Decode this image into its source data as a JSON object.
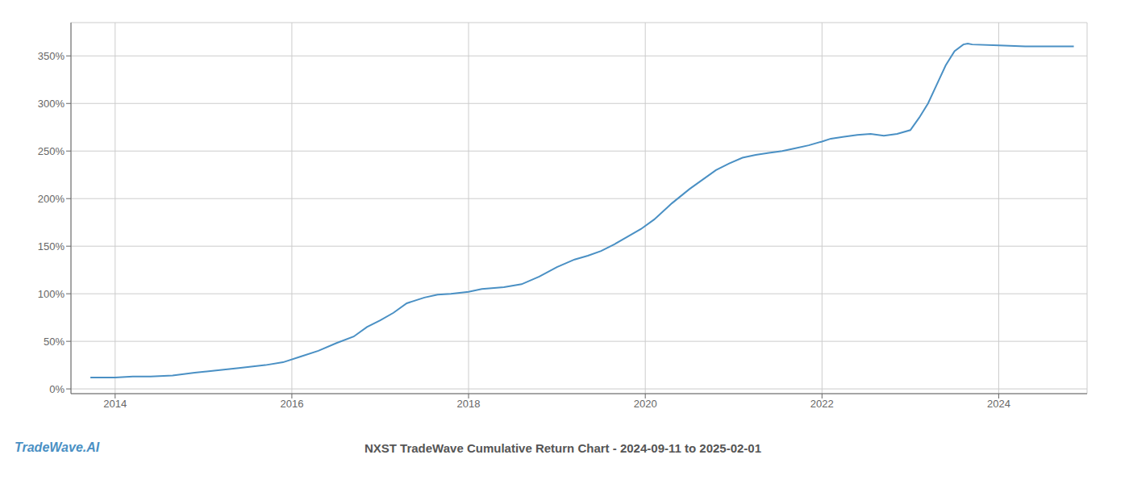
{
  "chart_data": {
    "type": "line",
    "title": "NXST TradeWave Cumulative Return Chart - 2024-09-11 to 2025-02-01",
    "annotations": [
      "TradeWave.AI"
    ],
    "color": "#4a90c4",
    "grid": true,
    "xlim": [
      2013.5,
      2025.0
    ],
    "xticks": [
      2014,
      2016,
      2018,
      2020,
      2022,
      2024
    ],
    "ylim": [
      -5,
      385
    ],
    "yticks": [
      {
        "value": 0,
        "label": "0%"
      },
      {
        "value": 50,
        "label": "50%"
      },
      {
        "value": 100,
        "label": "100%"
      },
      {
        "value": 150,
        "label": "150%"
      },
      {
        "value": 200,
        "label": "200%"
      },
      {
        "value": 250,
        "label": "250%"
      },
      {
        "value": 300,
        "label": "300%"
      },
      {
        "value": 350,
        "label": "350%"
      }
    ],
    "x": [
      2013.72,
      2014.0,
      2014.2,
      2014.4,
      2014.65,
      2014.9,
      2015.1,
      2015.4,
      2015.7,
      2015.9,
      2016.1,
      2016.3,
      2016.5,
      2016.7,
      2016.85,
      2017.0,
      2017.15,
      2017.3,
      2017.5,
      2017.65,
      2017.8,
      2018.0,
      2018.15,
      2018.4,
      2018.6,
      2018.8,
      2019.0,
      2019.2,
      2019.35,
      2019.5,
      2019.65,
      2019.8,
      2019.95,
      2020.1,
      2020.3,
      2020.5,
      2020.65,
      2020.8,
      2020.95,
      2021.1,
      2021.25,
      2021.4,
      2021.55,
      2021.7,
      2021.85,
      2022.0,
      2022.1,
      2022.25,
      2022.4,
      2022.55,
      2022.7,
      2022.85,
      2023.0,
      2023.1,
      2023.2,
      2023.3,
      2023.4,
      2023.5,
      2023.6,
      2023.65,
      2023.7,
      2024.0,
      2024.3,
      2024.6,
      2024.85
    ],
    "values": [
      12,
      12,
      13,
      13,
      14,
      17,
      19,
      22,
      25,
      28,
      34,
      40,
      48,
      55,
      65,
      72,
      80,
      90,
      96,
      99,
      100,
      102,
      105,
      107,
      110,
      118,
      128,
      136,
      140,
      145,
      152,
      160,
      168,
      178,
      195,
      210,
      220,
      230,
      237,
      243,
      246,
      248,
      250,
      253,
      256,
      260,
      263,
      265,
      267,
      268,
      266,
      268,
      272,
      285,
      300,
      320,
      340,
      355,
      362,
      363,
      362,
      361,
      360,
      360,
      360
    ]
  }
}
